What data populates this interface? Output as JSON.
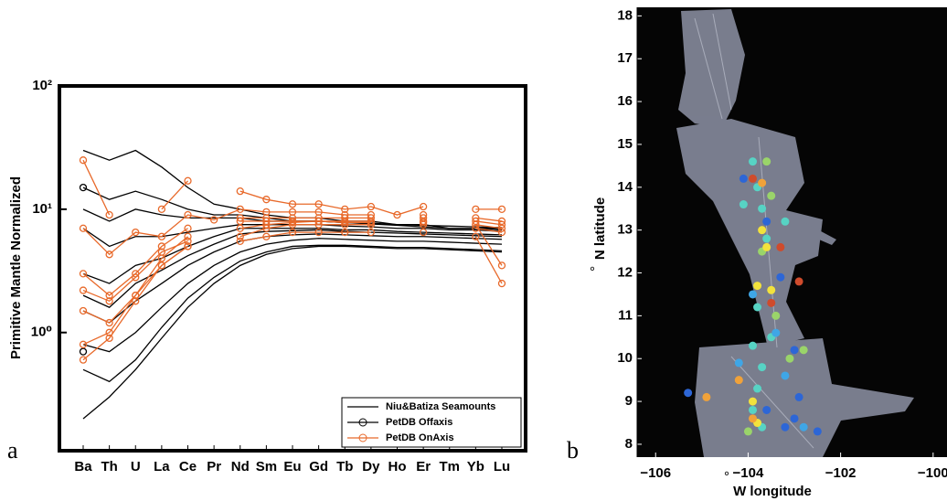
{
  "chart_data": [
    {
      "type": "line",
      "panel_label": "a",
      "y_label": "Primitive Mantle Normalized",
      "log_y": true,
      "legend": "lower right",
      "categories": [
        "Ba",
        "Th",
        "U",
        "La",
        "Ce",
        "Pr",
        "Nd",
        "Sm",
        "Eu",
        "Gd",
        "Tb",
        "Dy",
        "Ho",
        "Er",
        "Tm",
        "Yb",
        "Lu"
      ],
      "ylim": [
        0.11,
        100
      ],
      "yticks": [
        {
          "value": 1,
          "label": "10⁰"
        },
        {
          "value": 10,
          "label": "10¹"
        },
        {
          "value": 100,
          "label": "10²"
        }
      ],
      "series": [
        {
          "name": "Niu&Batiza Seamounts",
          "color": "#000000",
          "marker": "none",
          "values": [
            [
              30,
              25,
              30,
              22,
              15,
              11,
              10,
              9,
              8.5,
              8.5,
              8,
              8,
              7.5,
              7.5,
              7,
              7,
              7
            ],
            [
              15,
              12,
              14,
              12,
              10,
              9,
              9,
              8.5,
              8,
              8,
              7.8,
              7.6,
              7.4,
              7.2,
              7,
              7,
              6.8
            ],
            [
              10,
              8,
              10,
              9,
              8.5,
              8.5,
              8.5,
              8,
              8,
              8,
              7.8,
              7.7,
              7.5,
              7.4,
              7.3,
              7.2,
              7.1
            ],
            [
              7,
              5,
              6,
              6,
              6.5,
              7,
              7.5,
              7.5,
              7.5,
              7.5,
              7.3,
              7.2,
              7,
              7,
              6.8,
              6.8,
              6.6
            ],
            [
              3,
              2.5,
              3.5,
              4,
              5,
              6,
              7,
              7,
              7,
              7,
              6.8,
              6.8,
              6.6,
              6.5,
              6.4,
              6.3,
              6.2
            ],
            [
              2,
              1.6,
              2.5,
              3.2,
              4.2,
              5.2,
              6.3,
              6.6,
              6.7,
              6.8,
              6.6,
              6.5,
              6.4,
              6.3,
              6.2,
              6.1,
              6
            ],
            [
              1.5,
              1.2,
              1.8,
              2.5,
              3.5,
              4.5,
              5.5,
              6,
              6.2,
              6.3,
              6.2,
              6.1,
              6,
              6,
              5.9,
              5.8,
              5.7
            ],
            [
              0.8,
              0.7,
              1,
              1.6,
              2.5,
              3.5,
              4.5,
              5.2,
              5.6,
              5.8,
              5.7,
              5.6,
              5.5,
              5.5,
              5.4,
              5.3,
              5.2
            ],
            [
              0.5,
              0.4,
              0.6,
              1.1,
              1.9,
              2.8,
              3.8,
              4.5,
              5,
              5.1,
              5.1,
              5,
              4.9,
              4.9,
              4.8,
              4.7,
              4.6
            ],
            [
              0.2,
              0.3,
              0.5,
              0.9,
              1.6,
              2.5,
              3.5,
              4.3,
              4.8,
              5,
              5,
              4.9,
              4.8,
              4.8,
              4.7,
              4.6,
              4.5
            ]
          ]
        },
        {
          "name": "PetDB Offaxis",
          "color": "#000000",
          "marker": "circle",
          "values": [
            [
              15,
              null,
              null,
              null,
              null,
              null,
              null,
              null,
              null,
              null,
              null,
              null,
              null,
              null,
              null,
              null,
              null
            ],
            [
              0.7,
              null,
              null,
              null,
              null,
              null,
              null,
              null,
              null,
              null,
              null,
              null,
              null,
              null,
              null,
              null,
              null
            ]
          ]
        },
        {
          "name": "PetDB OnAxis",
          "color": "#e8692a",
          "marker": "circle",
          "values": [
            [
              25,
              9,
              null,
              10,
              17,
              null,
              14,
              12,
              11,
              11,
              10,
              10.5,
              9,
              10.5,
              null,
              10,
              10
            ],
            [
              7,
              4.3,
              6.5,
              6,
              9,
              8.2,
              10,
              9.5,
              9.5,
              9.5,
              9,
              9,
              null,
              9,
              null,
              8.5,
              8
            ],
            [
              3,
              2,
              3,
              5,
              7,
              null,
              8.5,
              8.5,
              8.5,
              8.5,
              8.5,
              8.5,
              null,
              8.5,
              null,
              8,
              7.5
            ],
            [
              2.2,
              1.8,
              2.8,
              4.5,
              5.5,
              null,
              7,
              7.5,
              7.8,
              8,
              7.8,
              7.8,
              null,
              7.8,
              null,
              7.5,
              3.5
            ],
            [
              1.5,
              1.2,
              2,
              4,
              6,
              null,
              8,
              8,
              8,
              8,
              8,
              8,
              null,
              8,
              null,
              7.5,
              7
            ],
            [
              0.8,
              1,
              2,
              3.5,
              5,
              null,
              6,
              7,
              7.5,
              7.5,
              7.5,
              7.5,
              null,
              7.5,
              null,
              7,
              6.5
            ],
            [
              0.6,
              0.9,
              1.8,
              3.5,
              5,
              null,
              5.5,
              6,
              6.5,
              6.5,
              6.5,
              6.5,
              null,
              6.5,
              null,
              6,
              2.5
            ]
          ]
        }
      ]
    },
    {
      "type": "scatter",
      "panel_label": "b",
      "x_label": "W longitude",
      "y_label": "N latitude",
      "degree_symbol": "°",
      "xlim": [
        -106.4,
        -99.7
      ],
      "ylim": [
        7.7,
        18.2
      ],
      "xticks": [
        {
          "value": -106,
          "label": "−106"
        },
        {
          "value": -104,
          "label": "−104"
        },
        {
          "value": -102,
          "label": "−102"
        },
        {
          "value": -100,
          "label": "−100"
        }
      ],
      "yticks": [
        8,
        9,
        10,
        11,
        12,
        13,
        14,
        15,
        16,
        17,
        18
      ],
      "series": [
        {
          "color": "#57d3c4",
          "x": [
            -103.9,
            -103.8,
            -103.7,
            -103.6,
            -103.8,
            -103.9,
            -103.7,
            -103.8,
            -103.9,
            -103.7,
            -103.5,
            -103.2,
            -104.1
          ],
          "y": [
            14.6,
            14.0,
            13.5,
            12.8,
            11.2,
            10.3,
            9.8,
            9.3,
            8.8,
            8.4,
            10.5,
            13.2,
            13.6
          ]
        },
        {
          "color": "#9ad46a",
          "x": [
            -103.6,
            -103.5,
            -103.7,
            -103.4,
            -102.8,
            -103.1,
            -104.0
          ],
          "y": [
            14.6,
            13.8,
            12.5,
            11.0,
            10.2,
            10.0,
            8.3
          ]
        },
        {
          "color": "#f2e23c",
          "x": [
            -103.7,
            -103.6,
            -103.8,
            -103.5,
            -103.9,
            -103.8
          ],
          "y": [
            13.0,
            12.6,
            11.7,
            11.6,
            9.0,
            8.5
          ]
        },
        {
          "color": "#f0a23a",
          "x": [
            -103.7,
            -104.2,
            -103.9,
            -104.9
          ],
          "y": [
            14.1,
            9.5,
            8.6,
            9.1
          ]
        },
        {
          "color": "#cf4b2c",
          "x": [
            -103.3,
            -102.9,
            -103.9,
            -103.5
          ],
          "y": [
            12.6,
            11.8,
            14.2,
            11.3
          ]
        },
        {
          "color": "#2d66d6",
          "x": [
            -104.1,
            -103.6,
            -103.3,
            -103.0,
            -102.9,
            -103.6,
            -103.2,
            -102.5,
            -105.3,
            -103.0
          ],
          "y": [
            14.2,
            13.2,
            11.9,
            10.2,
            9.1,
            8.8,
            8.4,
            8.3,
            9.2,
            8.6
          ]
        },
        {
          "color": "#3fa6e6",
          "x": [
            -103.9,
            -103.4,
            -104.2,
            -103.2,
            -102.8
          ],
          "y": [
            11.5,
            10.6,
            9.9,
            9.6,
            8.4
          ]
        }
      ]
    }
  ]
}
